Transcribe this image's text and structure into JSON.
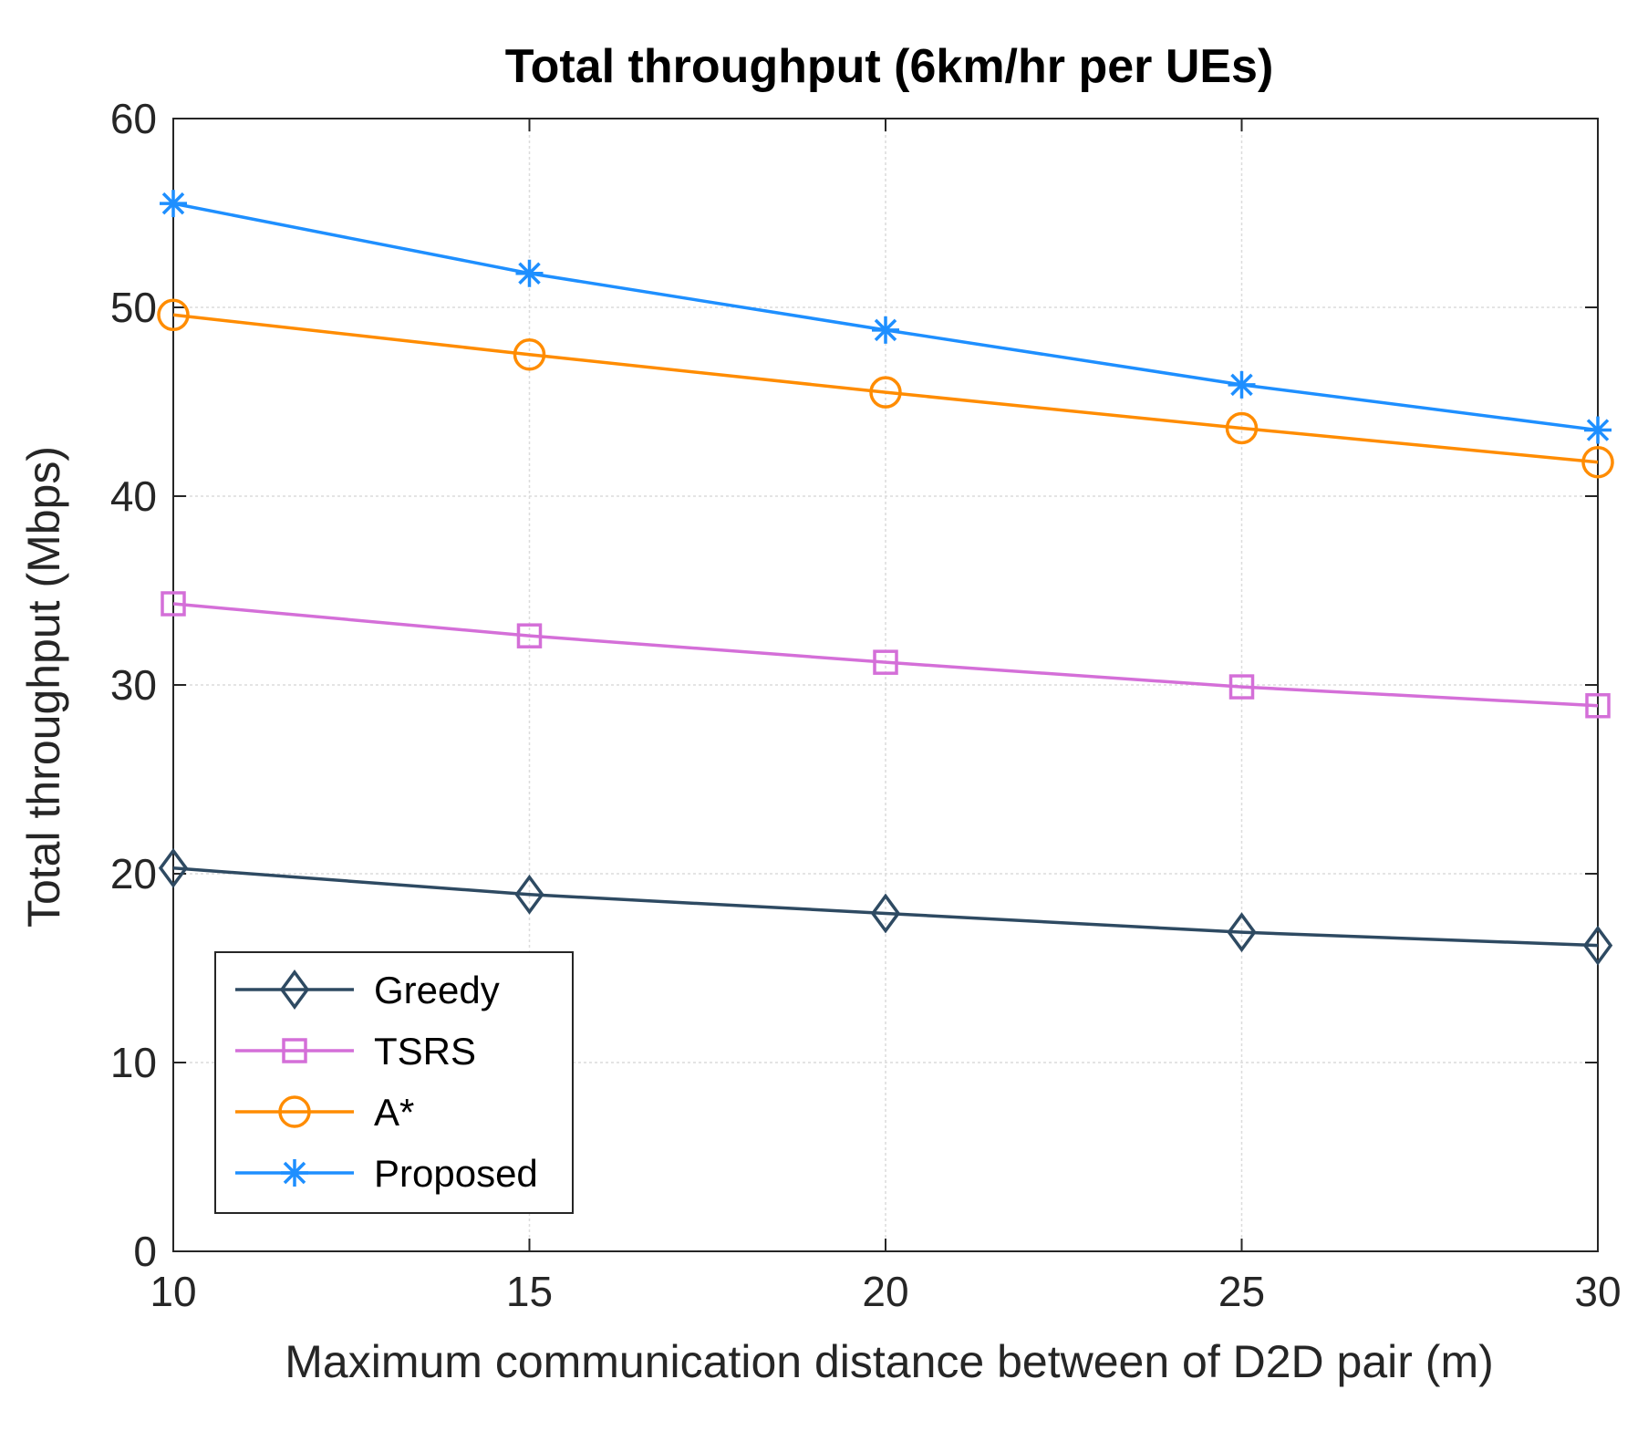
{
  "chart_data": {
    "type": "line",
    "title": "Total throughput (6km/hr per UEs)",
    "xlabel": "Maximum communication distance between of D2D pair (m)",
    "ylabel": "Total throughput (Mbps)",
    "x": [
      10,
      15,
      20,
      25,
      30
    ],
    "xlim": [
      10,
      30
    ],
    "ylim": [
      0,
      60
    ],
    "xticks": [
      "10",
      "15",
      "20",
      "25",
      "30"
    ],
    "yticks": [
      "0",
      "10",
      "20",
      "30",
      "40",
      "50",
      "60"
    ],
    "grid": true,
    "legend_position": "bottom-left",
    "series": [
      {
        "name": "Greedy",
        "marker": "diamond",
        "color": "#2e4a62",
        "values": [
          20.3,
          18.9,
          17.9,
          16.9,
          16.2
        ]
      },
      {
        "name": "TSRS",
        "marker": "square",
        "color": "#d46fd8",
        "values": [
          34.3,
          32.6,
          31.2,
          29.9,
          28.9
        ]
      },
      {
        "name": "A*",
        "marker": "circle",
        "color": "#ff8c00",
        "values": [
          49.6,
          47.5,
          45.5,
          43.6,
          41.8
        ]
      },
      {
        "name": "Proposed",
        "marker": "asterisk",
        "color": "#1e8fff",
        "values": [
          55.5,
          51.8,
          48.8,
          45.9,
          43.5
        ]
      }
    ]
  }
}
